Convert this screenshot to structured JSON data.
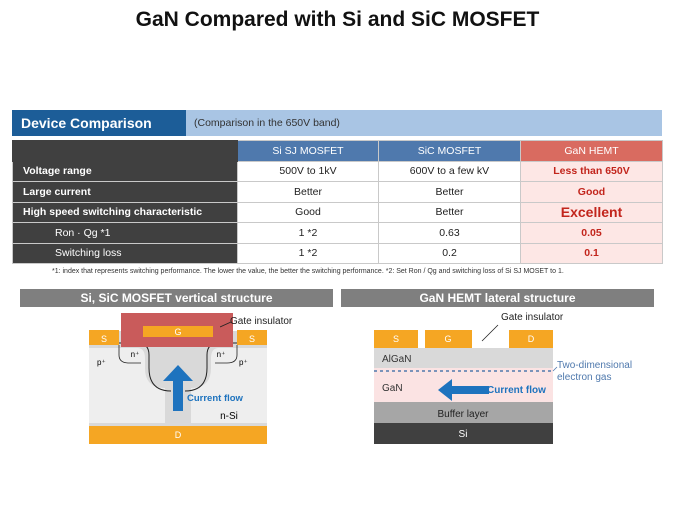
{
  "title": "GaN Compared with Si and SiC MOSFET",
  "comparison": {
    "heading": "Device Comparison",
    "subheading": "(Comparison in the 650V band)",
    "columns": [
      "Si SJ MOSFET",
      "SiC MOSFET",
      "GaN HEMT"
    ],
    "rows": [
      {
        "label": "Voltage range",
        "cells": [
          "500V to 1kV",
          "600V to a few kV",
          "Less than 650V"
        ],
        "sub": false
      },
      {
        "label": "Large current",
        "cells": [
          "Better",
          "Better",
          "Good"
        ],
        "sub": false
      },
      {
        "label": "High speed switching characteristic",
        "cells": [
          "Good",
          "Better",
          "Excellent"
        ],
        "sub": false
      },
      {
        "label": "Ron · Qg *1",
        "cells": [
          "1 *2",
          "0.63",
          "0.05"
        ],
        "sub": true
      },
      {
        "label": "Switching loss",
        "cells": [
          "1 *2",
          "0.2",
          "0.1"
        ],
        "sub": true
      }
    ],
    "footnote": "*1: index that represents switching performance. The lower the value, the better the switching performance.    *2: Set Ron / Qg and switching loss of Si SJ MOSET to 1."
  },
  "vertical": {
    "heading": "Si, SiC MOSFET vertical structure",
    "source": "S",
    "gate": "G",
    "drain": "D",
    "gate_insulator": "Gate insulator",
    "n_plus": "n⁺",
    "p_plus": "p⁺",
    "substrate": "n-Si",
    "current_flow": "Current flow"
  },
  "lateral": {
    "heading": "GaN HEMT lateral structure",
    "source": "S",
    "gate": "G",
    "drain": "D",
    "gate_insulator": "Gate insulator",
    "algan": "AlGaN",
    "gan": "GaN",
    "buffer": "Buffer layer",
    "si": "Si",
    "two_deg": "Two-dimensional electron gas",
    "current_flow": "Current flow"
  },
  "colors": {
    "header_blue": "#1c5d98",
    "header_light_blue": "#a9c5e4",
    "col_blue": "#4f79ad",
    "gan_red": "#d96b60",
    "electrode_orange": "#f5a623",
    "arrow_blue": "#1e73be"
  }
}
